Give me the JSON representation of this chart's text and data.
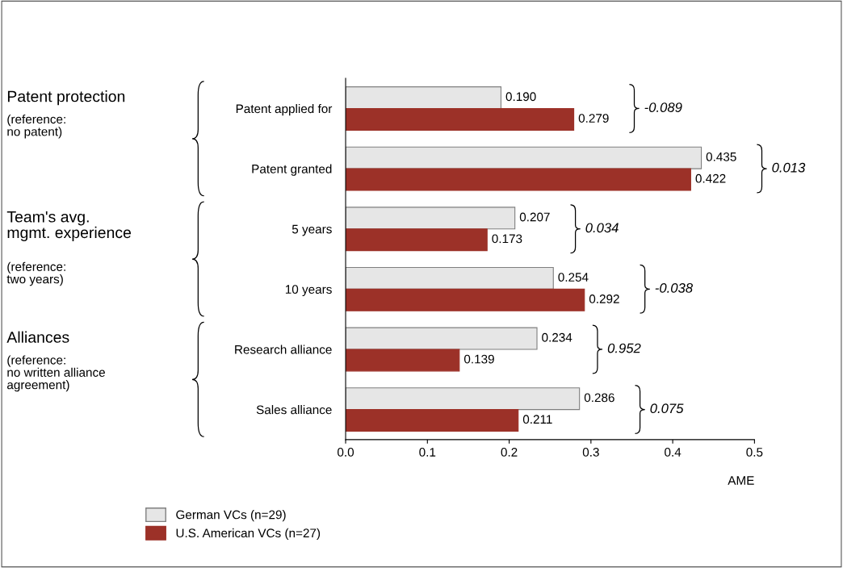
{
  "chart_data": {
    "type": "bar",
    "orientation": "horizontal",
    "categories": [
      "Patent applied for",
      "Patent granted",
      "5 years",
      "10 years",
      "Research alliance",
      "Sales alliance"
    ],
    "series": [
      {
        "name": "German VCs (n=29)",
        "color": "#e6e6e6",
        "values": [
          0.19,
          0.435,
          0.207,
          0.254,
          0.234,
          0.286
        ],
        "value_labels": [
          "0.190",
          "0.435",
          "0.207",
          "0.254",
          "0.234",
          "0.286"
        ]
      },
      {
        "name": "U.S. American VCs (n=27)",
        "color": "#9c3128",
        "values": [
          0.279,
          0.422,
          0.173,
          0.292,
          0.139,
          0.211
        ],
        "value_labels": [
          "0.279",
          "0.422",
          "0.173",
          "0.292",
          "0.139",
          "0.211"
        ]
      }
    ],
    "xlabel": "AME",
    "xlim": [
      0,
      0.5
    ],
    "xticks": [
      {
        "value": 0,
        "label": "0.0"
      },
      0.1,
      0.2,
      0.3,
      0.4,
      0.5
    ],
    "grid": false,
    "legend": "bottom left",
    "annotations": [
      "-0.089",
      "0.013",
      "0.034",
      "-0.038",
      "0.952",
      "0.075",
      "Patent protection",
      "(reference:\nno patent)",
      "Team's avg.\nmgmt. experience",
      "(reference:\ntwo years)",
      "Alliances",
      "(reference:\nno written alliance\nagreement)"
    ]
  }
}
